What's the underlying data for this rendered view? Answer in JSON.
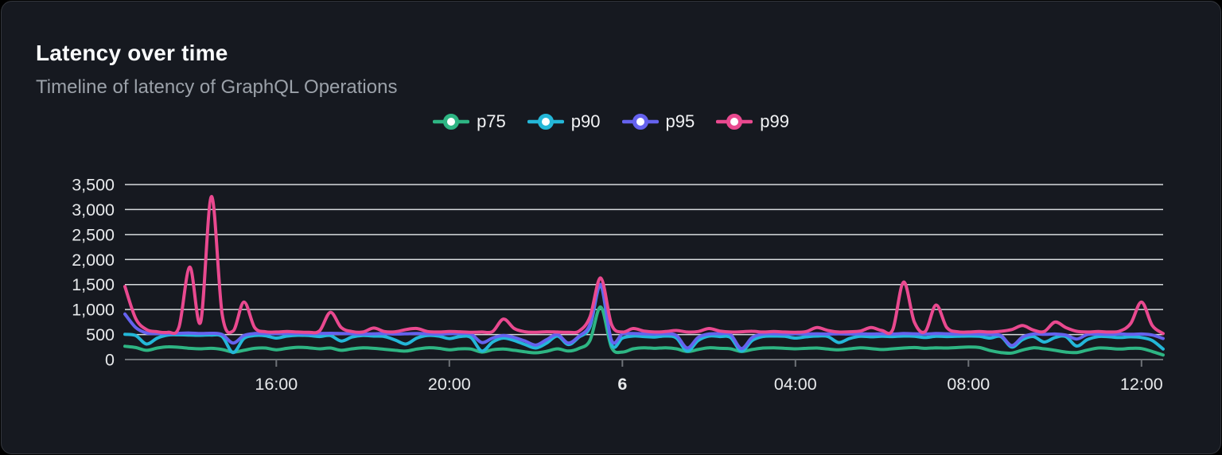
{
  "card": {
    "title": "Latency over time",
    "subtitle": "Timeline of latency of GraphQL Operations"
  },
  "colors": {
    "page_background": "#000000",
    "card_background": "#161920",
    "card_border": "#33363c",
    "title": "#fafbfc",
    "subtitle": "#9ba1a9",
    "grid_line": "#d7dadd",
    "axis_line": "#6e7277",
    "axis_label": "#e7e9eb",
    "legend_marker_fill": "#ffffff"
  },
  "chart_data": {
    "type": "line",
    "title": "Latency over time",
    "subtitle": "Timeline of latency of GraphQL Operations",
    "grid": "horizontal",
    "legend_position": "top-center",
    "ylim": [
      0,
      3500
    ],
    "y_ticks": {
      "values": [
        0,
        500,
        1000,
        1500,
        2000,
        2500,
        3000,
        3500
      ],
      "labels": [
        "0",
        "500",
        "1,000",
        "1,500",
        "2,000",
        "2,500",
        "3,000",
        "3,500"
      ]
    },
    "x_span_hours": 24,
    "x_step_hours": 0.25,
    "x_ticks": [
      {
        "hour_offset": 3.5,
        "label": "16:00",
        "emphasis": false
      },
      {
        "hour_offset": 7.5,
        "label": "20:00",
        "emphasis": false
      },
      {
        "hour_offset": 11.5,
        "label": "6",
        "emphasis": true
      },
      {
        "hour_offset": 15.5,
        "label": "04:00",
        "emphasis": false
      },
      {
        "hour_offset": 19.5,
        "label": "08:00",
        "emphasis": false
      },
      {
        "hour_offset": 23.5,
        "label": "12:00",
        "emphasis": false
      }
    ],
    "series": [
      {
        "name": "p75",
        "color": "#2eb583",
        "values": [
          265,
          240,
          185,
          230,
          255,
          245,
          225,
          215,
          225,
          200,
          150,
          185,
          225,
          230,
          195,
          225,
          245,
          235,
          215,
          230,
          185,
          215,
          235,
          225,
          205,
          185,
          170,
          210,
          235,
          225,
          195,
          215,
          210,
          150,
          195,
          210,
          185,
          155,
          135,
          165,
          215,
          170,
          225,
          380,
          1050,
          240,
          150,
          215,
          235,
          225,
          235,
          215,
          160,
          200,
          235,
          225,
          215,
          160,
          200,
          230,
          235,
          225,
          215,
          225,
          230,
          210,
          195,
          215,
          235,
          220,
          200,
          215,
          230,
          240,
          225,
          235,
          230,
          240,
          250,
          240,
          180,
          140,
          130,
          190,
          235,
          215,
          185,
          150,
          140,
          190,
          230,
          225,
          210,
          225,
          220,
          160,
          90
        ]
      },
      {
        "name": "p90",
        "color": "#24b7d8",
        "values": [
          505,
          480,
          310,
          430,
          490,
          495,
          490,
          485,
          490,
          460,
          140,
          420,
          480,
          475,
          430,
          470,
          485,
          480,
          460,
          480,
          370,
          450,
          480,
          470,
          460,
          390,
          310,
          430,
          480,
          470,
          420,
          460,
          440,
          170,
          350,
          430,
          380,
          300,
          230,
          330,
          470,
          300,
          450,
          650,
          1480,
          300,
          430,
          470,
          460,
          450,
          470,
          430,
          170,
          380,
          470,
          460,
          440,
          170,
          380,
          460,
          470,
          465,
          430,
          455,
          470,
          460,
          340,
          420,
          465,
          455,
          465,
          460,
          470,
          465,
          440,
          465,
          460,
          465,
          470,
          465,
          430,
          460,
          250,
          400,
          460,
          350,
          440,
          460,
          270,
          400,
          460,
          455,
          440,
          455,
          440,
          380,
          210
        ]
      },
      {
        "name": "p95",
        "color": "#6562ee",
        "values": [
          910,
          640,
          530,
          520,
          520,
          525,
          530,
          520,
          525,
          500,
          330,
          480,
          520,
          520,
          515,
          520,
          520,
          515,
          520,
          525,
          520,
          515,
          510,
          515,
          520,
          510,
          515,
          520,
          515,
          510,
          515,
          520,
          510,
          340,
          430,
          480,
          440,
          370,
          290,
          400,
          500,
          330,
          470,
          700,
          1500,
          380,
          510,
          520,
          515,
          510,
          515,
          480,
          230,
          440,
          510,
          515,
          500,
          220,
          440,
          510,
          515,
          510,
          515,
          510,
          515,
          510,
          515,
          510,
          515,
          510,
          515,
          510,
          520,
          515,
          510,
          520,
          515,
          510,
          515,
          510,
          500,
          480,
          280,
          450,
          510,
          505,
          510,
          490,
          410,
          500,
          510,
          505,
          510,
          505,
          510,
          490,
          420
        ]
      },
      {
        "name": "p99",
        "color": "#e9498f",
        "values": [
          1460,
          820,
          600,
          555,
          545,
          650,
          1850,
          750,
          3260,
          900,
          570,
          1150,
          640,
          555,
          550,
          560,
          550,
          545,
          575,
          945,
          640,
          560,
          550,
          630,
          560,
          555,
          600,
          620,
          560,
          550,
          560,
          555,
          545,
          550,
          560,
          810,
          620,
          555,
          545,
          555,
          550,
          545,
          570,
          850,
          1630,
          700,
          550,
          620,
          570,
          550,
          560,
          580,
          550,
          560,
          620,
          570,
          550,
          555,
          565,
          550,
          560,
          550,
          545,
          560,
          640,
          580,
          550,
          555,
          570,
          640,
          580,
          600,
          1550,
          750,
          560,
          1090,
          640,
          555,
          550,
          560,
          550,
          565,
          600,
          680,
          590,
          560,
          750,
          640,
          565,
          550,
          560,
          550,
          570,
          720,
          1150,
          680,
          520
        ]
      }
    ]
  }
}
